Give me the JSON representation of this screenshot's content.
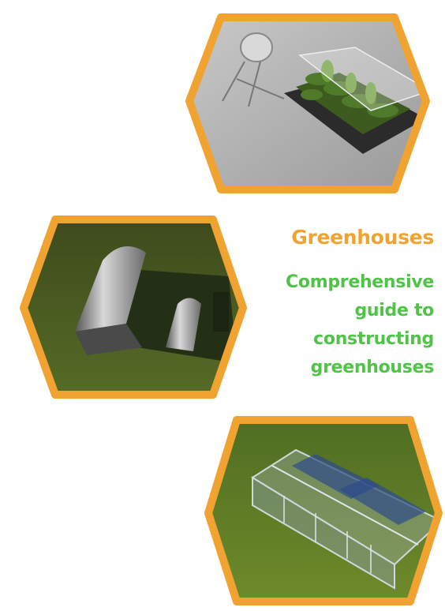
{
  "cover": {
    "title": "Greenhouses",
    "subtitle_lines": [
      "Comprehensive",
      "guide to",
      "constructing",
      "greenhouses"
    ]
  },
  "colors": {
    "title": "#f0a330",
    "subtitle": "#4fc447",
    "hex_border": "#f0a330",
    "background": "#ffffff"
  },
  "images": [
    {
      "name": "greenhouse-tray-render-icon"
    },
    {
      "name": "polytunnel-render-icon"
    },
    {
      "name": "glass-greenhouse-render-icon"
    }
  ]
}
